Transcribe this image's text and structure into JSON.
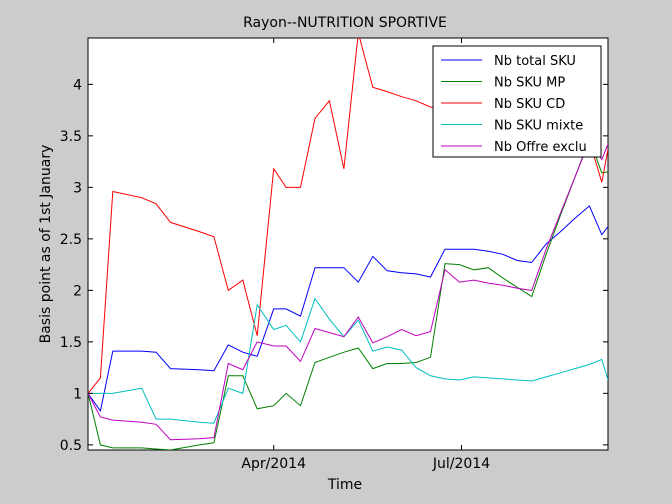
{
  "chart_data": {
    "type": "line",
    "title": "Rayon--NUTRITION SPORTIVE",
    "xlabel": "Time",
    "ylabel": "Basis point as of 1st January",
    "x_type": "date",
    "xlim": [
      "2014-01-01",
      "2014-09-10"
    ],
    "ylim": [
      0.45,
      4.45
    ],
    "x_ticks": [
      {
        "date": "2014-04-01",
        "label": "Apr/2014"
      },
      {
        "date": "2014-07-01",
        "label": "Jul/2014"
      }
    ],
    "y_ticks": [
      {
        "value": 0.5,
        "label": "0.5"
      },
      {
        "value": 1,
        "label": "1"
      },
      {
        "value": 1.5,
        "label": "1.5"
      },
      {
        "value": 2,
        "label": "2"
      },
      {
        "value": 2.5,
        "label": "2.5"
      },
      {
        "value": 3,
        "label": "3"
      },
      {
        "value": 3.5,
        "label": "3.5"
      },
      {
        "value": 4,
        "label": "4"
      }
    ],
    "grid": false,
    "legend_position": "top-right",
    "x": [
      "2014-01-01",
      "2014-01-07",
      "2014-01-13",
      "2014-01-27",
      "2014-02-03",
      "2014-02-10",
      "2014-02-24",
      "2014-03-03",
      "2014-03-10",
      "2014-03-17",
      "2014-03-24",
      "2014-04-01",
      "2014-04-07",
      "2014-04-14",
      "2014-04-21",
      "2014-04-28",
      "2014-05-05",
      "2014-05-12",
      "2014-05-19",
      "2014-05-26",
      "2014-06-02",
      "2014-06-09",
      "2014-06-16",
      "2014-06-23",
      "2014-06-30",
      "2014-07-07",
      "2014-07-14",
      "2014-07-21",
      "2014-07-28",
      "2014-08-04",
      "2014-08-11",
      "2014-08-18",
      "2014-08-25",
      "2014-09-01",
      "2014-09-07",
      "2014-09-10"
    ],
    "series": [
      {
        "name": "Nb total SKU",
        "color": "#0000ff",
        "values": [
          1.0,
          0.83,
          1.41,
          1.41,
          1.4,
          1.24,
          1.23,
          1.22,
          1.47,
          1.4,
          1.36,
          1.82,
          1.82,
          1.75,
          2.22,
          2.22,
          2.22,
          2.08,
          2.33,
          2.19,
          2.17,
          2.16,
          2.13,
          2.4,
          2.4,
          2.4,
          2.38,
          2.35,
          2.29,
          2.27,
          2.45,
          2.57,
          2.7,
          2.82,
          2.54,
          2.62
        ]
      },
      {
        "name": "Nb SKU MP",
        "color": "#008000",
        "values": [
          1.0,
          0.5,
          0.47,
          0.47,
          0.46,
          0.45,
          0.5,
          0.52,
          1.17,
          1.17,
          0.85,
          0.88,
          1.0,
          0.88,
          1.3,
          1.35,
          1.4,
          1.44,
          1.24,
          1.29,
          1.29,
          1.3,
          1.35,
          2.26,
          2.25,
          2.2,
          2.22,
          2.12,
          2.03,
          1.94,
          2.35,
          2.73,
          3.1,
          3.47,
          3.14,
          3.15
        ]
      },
      {
        "name": "Nb SKU CD",
        "color": "#ff0000",
        "values": [
          1.0,
          1.15,
          2.96,
          2.9,
          2.84,
          2.66,
          2.57,
          2.52,
          2.0,
          2.1,
          1.56,
          3.18,
          3.0,
          3.0,
          3.67,
          3.84,
          3.18,
          4.5,
          3.97,
          3.93,
          3.88,
          3.84,
          3.78,
          3.75,
          3.7,
          3.68,
          3.6,
          3.55,
          3.52,
          3.48,
          3.4,
          3.35,
          3.3,
          3.45,
          3.05,
          3.37
        ]
      },
      {
        "name": "Nb SKU mixte",
        "color": "#00bfbf",
        "values": [
          1.0,
          1.0,
          1.0,
          1.05,
          0.75,
          0.75,
          0.72,
          0.71,
          1.05,
          1.0,
          1.86,
          1.62,
          1.66,
          1.5,
          1.92,
          1.72,
          1.55,
          1.71,
          1.41,
          1.45,
          1.42,
          1.25,
          1.17,
          1.14,
          1.13,
          1.16,
          1.15,
          1.14,
          1.13,
          1.12,
          1.16,
          1.2,
          1.24,
          1.28,
          1.33,
          1.13
        ]
      },
      {
        "name": "Nb Offre exclu",
        "color": "#bf00bf",
        "values": [
          1.0,
          0.77,
          0.74,
          0.72,
          0.7,
          0.55,
          0.56,
          0.57,
          1.29,
          1.23,
          1.5,
          1.46,
          1.46,
          1.31,
          1.63,
          1.59,
          1.55,
          1.74,
          1.49,
          1.55,
          1.62,
          1.56,
          1.6,
          2.2,
          2.08,
          2.1,
          2.07,
          2.05,
          2.02,
          2.0,
          2.4,
          2.75,
          3.1,
          3.45,
          3.27,
          3.42
        ]
      }
    ]
  }
}
